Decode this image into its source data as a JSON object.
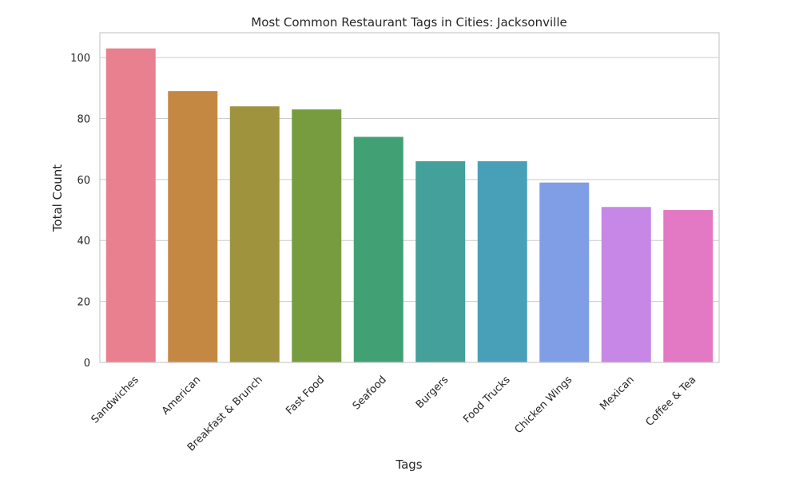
{
  "chart_data": {
    "type": "bar",
    "title": "Most Common Restaurant Tags in Cities: Jacksonville",
    "xlabel": "Tags",
    "ylabel": "Total Count",
    "categories": [
      "Sandwiches",
      "American",
      "Breakfast & Brunch",
      "Fast Food",
      "Seafood",
      "Burgers",
      "Food Trucks",
      "Chicken Wings",
      "Mexican",
      "Coffee & Tea"
    ],
    "values": [
      103,
      89,
      84,
      83,
      74,
      66,
      66,
      59,
      51,
      50
    ],
    "colors": [
      "#e8808f",
      "#c58843",
      "#9f933e",
      "#779c40",
      "#41a074",
      "#43a09a",
      "#47a0b7",
      "#809ee6",
      "#c687e6",
      "#e378c5"
    ],
    "ylim": [
      0,
      108.15
    ],
    "yticks": [
      0,
      20,
      40,
      60,
      80,
      100
    ],
    "grid": true,
    "legend": "none"
  }
}
